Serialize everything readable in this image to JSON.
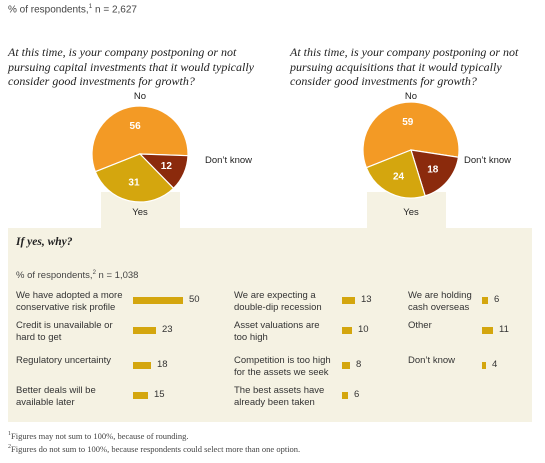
{
  "header": {
    "respondents_prefix": "% of respondents,",
    "respondents_sup": "1",
    "respondents_n": " n = 2,627"
  },
  "chart_data": [
    {
      "type": "pie",
      "title": "At this time, is your company postponing or not pursuing capital investments that it would typically consider good investments for growth?",
      "slices": [
        {
          "label": "No",
          "value": 56,
          "color": "#f39a25"
        },
        {
          "label": "Don’t know",
          "value": 12,
          "color": "#8b2a0c"
        },
        {
          "label": "Yes",
          "value": 31,
          "color": "#d4a60e"
        }
      ]
    },
    {
      "type": "pie",
      "title": "At this time, is your company postponing or not pursuing acquisitions that it would typically consider good investments for growth?",
      "slices": [
        {
          "label": "No",
          "value": 59,
          "color": "#f39a25"
        },
        {
          "label": "Don’t know",
          "value": 18,
          "color": "#8b2a0c"
        },
        {
          "label": "Yes",
          "value": 24,
          "color": "#d4a60e"
        }
      ]
    },
    {
      "type": "bar",
      "title": "If yes, why?",
      "subtitle_prefix": "% of respondents,",
      "subtitle_sup": "2",
      "subtitle_n": " n = 1,038",
      "bar_color": "#d4a60e",
      "categories": [
        "We have adopted a more conservative risk profile",
        "Credit is unavailable or hard to get",
        "Regulatory uncertainty",
        "Better deals will be available later",
        "We are expecting a double-dip recession",
        "Asset valuations are too high",
        "Competition is too high for the assets we seek",
        "The best assets have already been taken",
        "We are holding cash overseas",
        "Other",
        "Don’t know"
      ],
      "values": [
        50,
        23,
        18,
        15,
        13,
        10,
        8,
        6,
        6,
        11,
        4
      ]
    }
  ],
  "footnotes": {
    "f1_sup": "1",
    "f1_text": "Figures may not sum to 100%, because of rounding.",
    "f2_sup": "2",
    "f2_text": "Figures do not sum to 100%, because respondents could select more than one option."
  }
}
